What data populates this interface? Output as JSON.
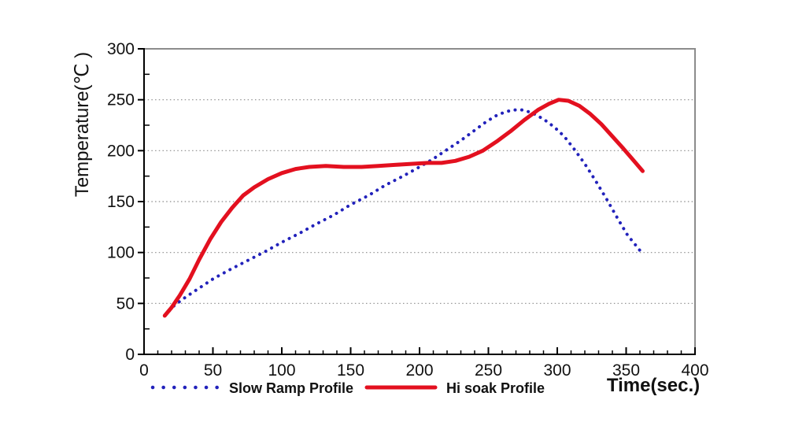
{
  "chart_data": {
    "type": "line",
    "title": "",
    "xlabel": "Time(sec.)",
    "ylabel": "Temperature(℃ )",
    "xlim": [
      0,
      400
    ],
    "ylim": [
      0,
      300
    ],
    "x_major_step": 50,
    "x_minor_step": 10,
    "y_major_step": 50,
    "y_minor_step": 25,
    "x_tick_labels": [
      "0",
      "50",
      "100",
      "150",
      "200",
      "250",
      "300",
      "350",
      "400"
    ],
    "y_tick_labels": [
      "0",
      "50",
      "100",
      "150",
      "200",
      "250",
      "300"
    ],
    "grid": "horizontal dotted lines at 50,100,150,200,250",
    "legend_position": "bottom",
    "series": [
      {
        "name": "Slow Ramp Profile",
        "color": "#2222bb",
        "style": "dotted",
        "points": [
          [
            15,
            38
          ],
          [
            22,
            48
          ],
          [
            30,
            56
          ],
          [
            40,
            65
          ],
          [
            50,
            74
          ],
          [
            62,
            83
          ],
          [
            75,
            92
          ],
          [
            88,
            101
          ],
          [
            100,
            110
          ],
          [
            113,
            119
          ],
          [
            125,
            128
          ],
          [
            138,
            137
          ],
          [
            150,
            147
          ],
          [
            163,
            156
          ],
          [
            175,
            166
          ],
          [
            188,
            175
          ],
          [
            200,
            184
          ],
          [
            210,
            192
          ],
          [
            220,
            201
          ],
          [
            230,
            210
          ],
          [
            240,
            220
          ],
          [
            248,
            228
          ],
          [
            255,
            234
          ],
          [
            262,
            238
          ],
          [
            268,
            240
          ],
          [
            275,
            240
          ],
          [
            282,
            237
          ],
          [
            290,
            231
          ],
          [
            298,
            223
          ],
          [
            305,
            214
          ],
          [
            312,
            202
          ],
          [
            320,
            187
          ],
          [
            328,
            170
          ],
          [
            336,
            152
          ],
          [
            344,
            133
          ],
          [
            351,
            117
          ],
          [
            357,
            107
          ],
          [
            360,
            102
          ]
        ]
      },
      {
        "name": "Hi soak Profile",
        "color": "#e3101f",
        "style": "solid",
        "points": [
          [
            15,
            38
          ],
          [
            20,
            46
          ],
          [
            26,
            58
          ],
          [
            33,
            74
          ],
          [
            40,
            93
          ],
          [
            48,
            113
          ],
          [
            56,
            130
          ],
          [
            64,
            144
          ],
          [
            72,
            156
          ],
          [
            80,
            164
          ],
          [
            90,
            172
          ],
          [
            100,
            178
          ],
          [
            110,
            182
          ],
          [
            120,
            184
          ],
          [
            132,
            185
          ],
          [
            145,
            184
          ],
          [
            158,
            184
          ],
          [
            170,
            185
          ],
          [
            182,
            186
          ],
          [
            194,
            187
          ],
          [
            206,
            188
          ],
          [
            216,
            188
          ],
          [
            226,
            190
          ],
          [
            236,
            194
          ],
          [
            246,
            200
          ],
          [
            256,
            209
          ],
          [
            266,
            219
          ],
          [
            276,
            230
          ],
          [
            286,
            240
          ],
          [
            294,
            246
          ],
          [
            301,
            250
          ],
          [
            308,
            249
          ],
          [
            316,
            244
          ],
          [
            324,
            236
          ],
          [
            332,
            226
          ],
          [
            340,
            214
          ],
          [
            348,
            202
          ],
          [
            355,
            191
          ],
          [
            362,
            180
          ]
        ]
      }
    ]
  },
  "colors": {
    "axis": "#000000",
    "border": "#8c8c8c",
    "grid": "#8a8a8a",
    "text": "#111111",
    "slow_ramp": "#2222bb",
    "hi_soak": "#e3101f"
  }
}
